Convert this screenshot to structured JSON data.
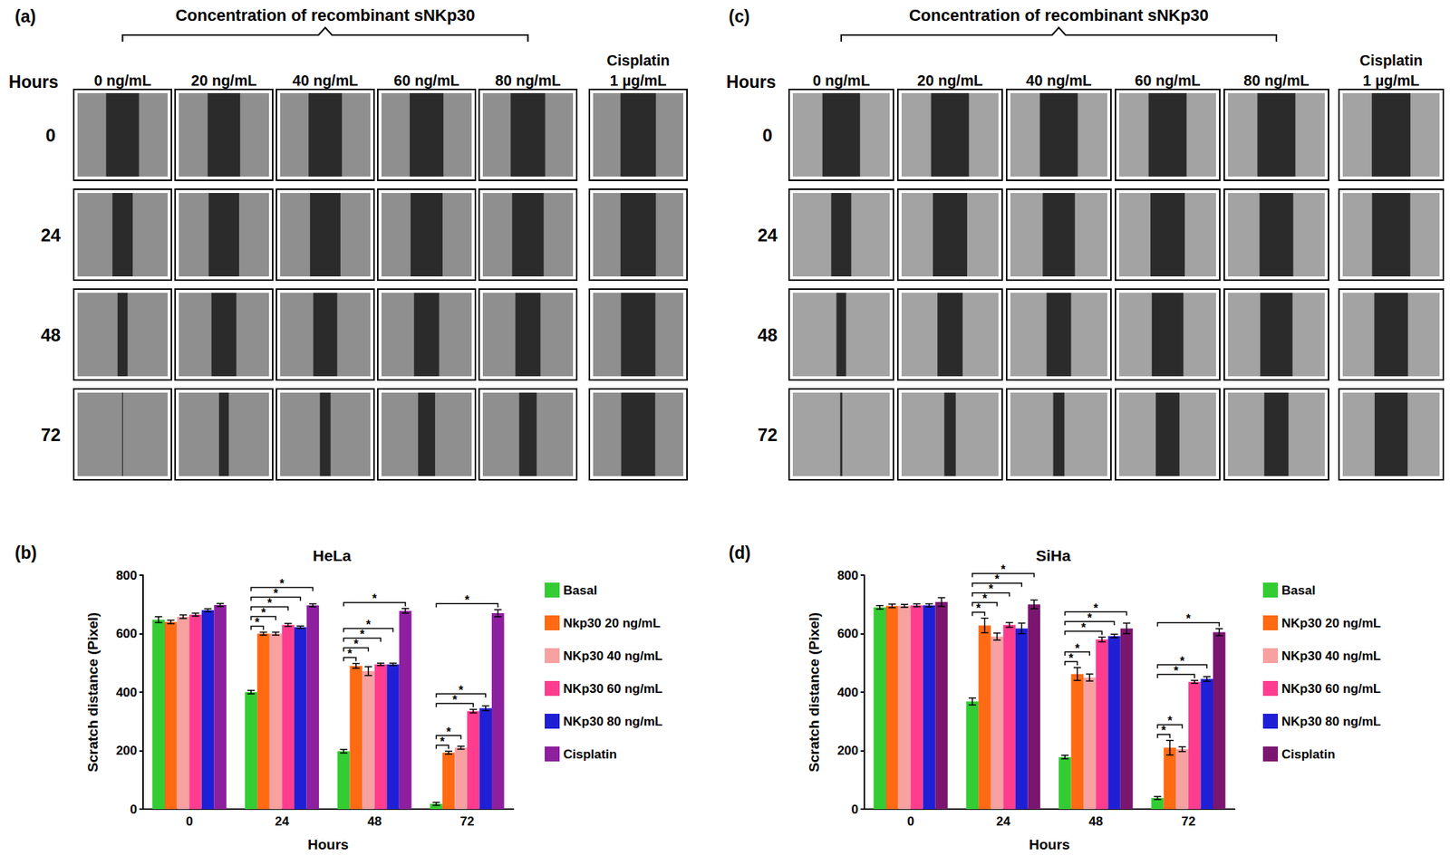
{
  "image_panels": [
    {
      "panel": "(a)",
      "title": "Concentration of recombinant sNKp30",
      "row_header": "Hours",
      "concentrations": [
        "0 ng/mL",
        "20 ng/mL",
        "40 ng/mL",
        "60 ng/mL",
        "80 ng/mL"
      ],
      "control": [
        "Cisplatin",
        "1 µg/mL"
      ],
      "rows": [
        "0",
        "24",
        "48",
        "72"
      ]
    },
    {
      "panel": "(c)",
      "title": "Concentration of recombinant sNKp30",
      "row_header": "Hours",
      "concentrations": [
        "0 ng/mL",
        "20 ng/mL",
        "40 ng/mL",
        "60 ng/mL",
        "80 ng/mL"
      ],
      "control": [
        "Cisplatin",
        "1 µg/mL"
      ],
      "rows": [
        "0",
        "24",
        "48",
        "72"
      ]
    }
  ],
  "chart_data": [
    {
      "type": "bar",
      "panel": "(b)",
      "title": "HeLa",
      "xlabel": "Hours",
      "ylabel": "Scratch distance (Pixel)",
      "categories": [
        "0",
        "24",
        "48",
        "72"
      ],
      "ylim": [
        0,
        800
      ],
      "yticks": [
        0,
        200,
        400,
        600,
        800
      ],
      "grid": false,
      "legend": "right",
      "series": [
        {
          "name": "Basal",
          "color": "#33cc33",
          "values": [
            648,
            400,
            198,
            18
          ],
          "errors": [
            10,
            6,
            6,
            5
          ]
        },
        {
          "name": "Nkp30 20 ng/mL",
          "color": "#ff6a13",
          "values": [
            640,
            600,
            490,
            193
          ],
          "errors": [
            6,
            5,
            8,
            5
          ]
        },
        {
          "name": "NKp30 40 ng/mL",
          "color": "#f7a1a1",
          "values": [
            658,
            600,
            472,
            210
          ],
          "errors": [
            6,
            5,
            15,
            5
          ]
        },
        {
          "name": "NKp30 60 ng/mL",
          "color": "#ff3d8e",
          "values": [
            665,
            630,
            495,
            335
          ],
          "errors": [
            5,
            5,
            4,
            6
          ]
        },
        {
          "name": "NKp30 80 ng/mL",
          "color": "#1f1fd6",
          "values": [
            680,
            622,
            495,
            345
          ],
          "errors": [
            5,
            4,
            4,
            8
          ]
        },
        {
          "name": "Cisplatin",
          "color": "#8e1f9e",
          "values": [
            698,
            697,
            678,
            670
          ],
          "errors": [
            5,
            5,
            8,
            12
          ]
        }
      ],
      "significance": [
        {
          "category": "24",
          "from": "Basal",
          "to": "Nkp30 20 ng/mL",
          "label": "*"
        },
        {
          "category": "24",
          "from": "Basal",
          "to": "NKp30 40 ng/mL",
          "label": "*"
        },
        {
          "category": "24",
          "from": "Basal",
          "to": "NKp30 60 ng/mL",
          "label": "*"
        },
        {
          "category": "24",
          "from": "Basal",
          "to": "NKp30 80 ng/mL",
          "label": "*"
        },
        {
          "category": "24",
          "from": "Basal",
          "to": "Cisplatin",
          "label": "*"
        },
        {
          "category": "48",
          "from": "Basal",
          "to": "Nkp30 20 ng/mL",
          "label": "*"
        },
        {
          "category": "48",
          "from": "Basal",
          "to": "NKp30 40 ng/mL",
          "label": "*"
        },
        {
          "category": "48",
          "from": "Basal",
          "to": "NKp30 60 ng/mL",
          "label": "*"
        },
        {
          "category": "48",
          "from": "Basal",
          "to": "NKp30 80 ng/mL",
          "label": "*"
        },
        {
          "category": "48",
          "from": "Basal",
          "to": "Cisplatin",
          "label": "*"
        },
        {
          "category": "72",
          "from": "Basal",
          "to": "Nkp30 20 ng/mL",
          "label": "*"
        },
        {
          "category": "72",
          "from": "Basal",
          "to": "NKp30 40 ng/mL",
          "label": "*"
        },
        {
          "category": "72",
          "from": "Basal",
          "to": "NKp30 60 ng/mL",
          "label": "*"
        },
        {
          "category": "72",
          "from": "Basal",
          "to": "NKp30 80 ng/mL",
          "label": "*"
        },
        {
          "category": "72",
          "from": "Basal",
          "to": "Cisplatin",
          "label": "*"
        }
      ]
    },
    {
      "type": "bar",
      "panel": "(d)",
      "title": "SiHa",
      "xlabel": "Hours",
      "ylabel": "Scratch distance (Pixel)",
      "categories": [
        "0",
        "24",
        "48",
        "72"
      ],
      "ylim": [
        0,
        800
      ],
      "yticks": [
        0,
        200,
        400,
        600,
        800
      ],
      "grid": false,
      "legend": "right",
      "series": [
        {
          "name": "Basal",
          "color": "#33cc33",
          "values": [
            690,
            368,
            178,
            38
          ],
          "errors": [
            6,
            12,
            6,
            5
          ]
        },
        {
          "name": "NKp30 20 ng/mL",
          "color": "#ff6a13",
          "values": [
            695,
            628,
            462,
            210
          ],
          "errors": [
            6,
            25,
            22,
            25
          ]
        },
        {
          "name": "NKp30 40 ng/mL",
          "color": "#f7a1a1",
          "values": [
            695,
            590,
            450,
            205
          ],
          "errors": [
            5,
            12,
            12,
            8
          ]
        },
        {
          "name": "NKp30 60 ng/mL",
          "color": "#ff3d8e",
          "values": [
            697,
            630,
            580,
            435
          ],
          "errors": [
            5,
            8,
            8,
            5
          ]
        },
        {
          "name": "NKp30 80 ng/mL",
          "color": "#1f1fd6",
          "values": [
            697,
            618,
            592,
            445
          ],
          "errors": [
            5,
            18,
            6,
            8
          ]
        },
        {
          "name": "Cisplatin",
          "color": "#7a1670",
          "values": [
            708,
            700,
            618,
            605
          ],
          "errors": [
            15,
            15,
            18,
            12
          ]
        }
      ],
      "significance": [
        {
          "category": "24",
          "from": "Basal",
          "to": "NKp30 20 ng/mL",
          "label": "*"
        },
        {
          "category": "24",
          "from": "Basal",
          "to": "NKp30 40 ng/mL",
          "label": "*"
        },
        {
          "category": "24",
          "from": "Basal",
          "to": "NKp30 60 ng/mL",
          "label": "*"
        },
        {
          "category": "24",
          "from": "Basal",
          "to": "NKp30 80 ng/mL",
          "label": "*"
        },
        {
          "category": "24",
          "from": "Basal",
          "to": "Cisplatin",
          "label": "*"
        },
        {
          "category": "48",
          "from": "Basal",
          "to": "NKp30 20 ng/mL",
          "label": "*"
        },
        {
          "category": "48",
          "from": "Basal",
          "to": "NKp30 40 ng/mL",
          "label": "*"
        },
        {
          "category": "48",
          "from": "Basal",
          "to": "NKp30 60 ng/mL",
          "label": "*"
        },
        {
          "category": "48",
          "from": "Basal",
          "to": "NKp30 80 ng/mL",
          "label": "*"
        },
        {
          "category": "48",
          "from": "Basal",
          "to": "Cisplatin",
          "label": "*"
        },
        {
          "category": "72",
          "from": "Basal",
          "to": "NKp30 20 ng/mL",
          "label": "*"
        },
        {
          "category": "72",
          "from": "Basal",
          "to": "NKp30 40 ng/mL",
          "label": "*"
        },
        {
          "category": "72",
          "from": "Basal",
          "to": "NKp30 60 ng/mL",
          "label": "*"
        },
        {
          "category": "72",
          "from": "Basal",
          "to": "NKp30 80 ng/mL",
          "label": "*"
        },
        {
          "category": "72",
          "from": "Basal",
          "to": "Cisplatin",
          "label": "*"
        }
      ]
    }
  ]
}
